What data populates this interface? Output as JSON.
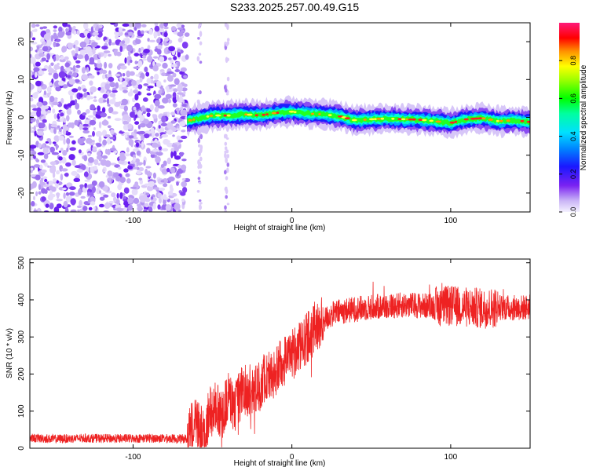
{
  "title": "S233.2025.257.00.49.G15",
  "colors": {
    "snr_line": "#ee2222",
    "axis": "#000000"
  },
  "chart_data": [
    {
      "type": "heatmap",
      "title": "S233.2025.257.00.49.G15",
      "xlabel": "Height of straight line (km)",
      "ylabel": "Frequency (Hz)",
      "xlim": [
        -165,
        150
      ],
      "ylim": [
        -25,
        25
      ],
      "xticks": [
        -100,
        0,
        100
      ],
      "xtick_labels": [
        "-100",
        "0",
        "100"
      ],
      "yticks": [
        -20,
        -10,
        0,
        10,
        20
      ],
      "ytick_labels": [
        "-20",
        "-10",
        "0",
        "10",
        "20"
      ],
      "noise_region_x": [
        -165,
        -66
      ],
      "signal_start_x": -66,
      "signal_track": {
        "x": [
          -66,
          -50,
          -40,
          -30,
          -20,
          -10,
          0,
          10,
          20,
          30,
          40,
          50,
          60,
          70,
          80,
          90,
          100,
          110,
          120,
          130,
          140,
          150
        ],
        "frequency": [
          -1.0,
          0.5,
          0.5,
          0.8,
          0.5,
          1.2,
          1.5,
          1.0,
          0.8,
          0.3,
          -0.8,
          -0.5,
          -0.3,
          -0.5,
          -0.6,
          -1.0,
          -1.5,
          -0.5,
          -0.2,
          -1.0,
          -0.8,
          -1.2
        ]
      },
      "colorbar": {
        "label": "Normalized spectral amplitude",
        "range": [
          0,
          1
        ],
        "ticks": [
          0.0,
          0.2,
          0.4,
          0.6,
          0.8
        ],
        "tick_labels": [
          "0.0",
          "0.2",
          "0.4",
          "0.6",
          "0.8"
        ]
      }
    },
    {
      "type": "line",
      "xlabel": "Height of straight line (km)",
      "ylabel": "SNR (10 * v/v)",
      "xlim": [
        -165,
        150
      ],
      "ylim": [
        0,
        510
      ],
      "xticks": [
        -100,
        0,
        100
      ],
      "xtick_labels": [
        "-100",
        "0",
        "100"
      ],
      "yticks": [
        0,
        100,
        200,
        300,
        400,
        500
      ],
      "ytick_labels": [
        "0",
        "100",
        "200",
        "300",
        "400",
        "500"
      ],
      "series": [
        {
          "name": "SNR",
          "x": [
            -165,
            -150,
            -130,
            -110,
            -90,
            -75,
            -66,
            -62,
            -58,
            -55,
            -52,
            -48,
            -44,
            -40,
            -36,
            -32,
            -28,
            -24,
            -20,
            -16,
            -12,
            -8,
            -4,
            0,
            5,
            10,
            15,
            20,
            25,
            30,
            40,
            50,
            60,
            70,
            80,
            90,
            100,
            110,
            120,
            130,
            140,
            150
          ],
          "y": [
            28,
            25,
            27,
            26,
            27,
            26,
            25,
            70,
            50,
            35,
            95,
            110,
            90,
            140,
            110,
            150,
            160,
            150,
            170,
            200,
            190,
            220,
            240,
            250,
            270,
            300,
            330,
            345,
            360,
            368,
            375,
            380,
            383,
            386,
            385,
            382,
            384,
            380,
            377,
            380,
            378,
            380
          ]
        }
      ]
    }
  ]
}
